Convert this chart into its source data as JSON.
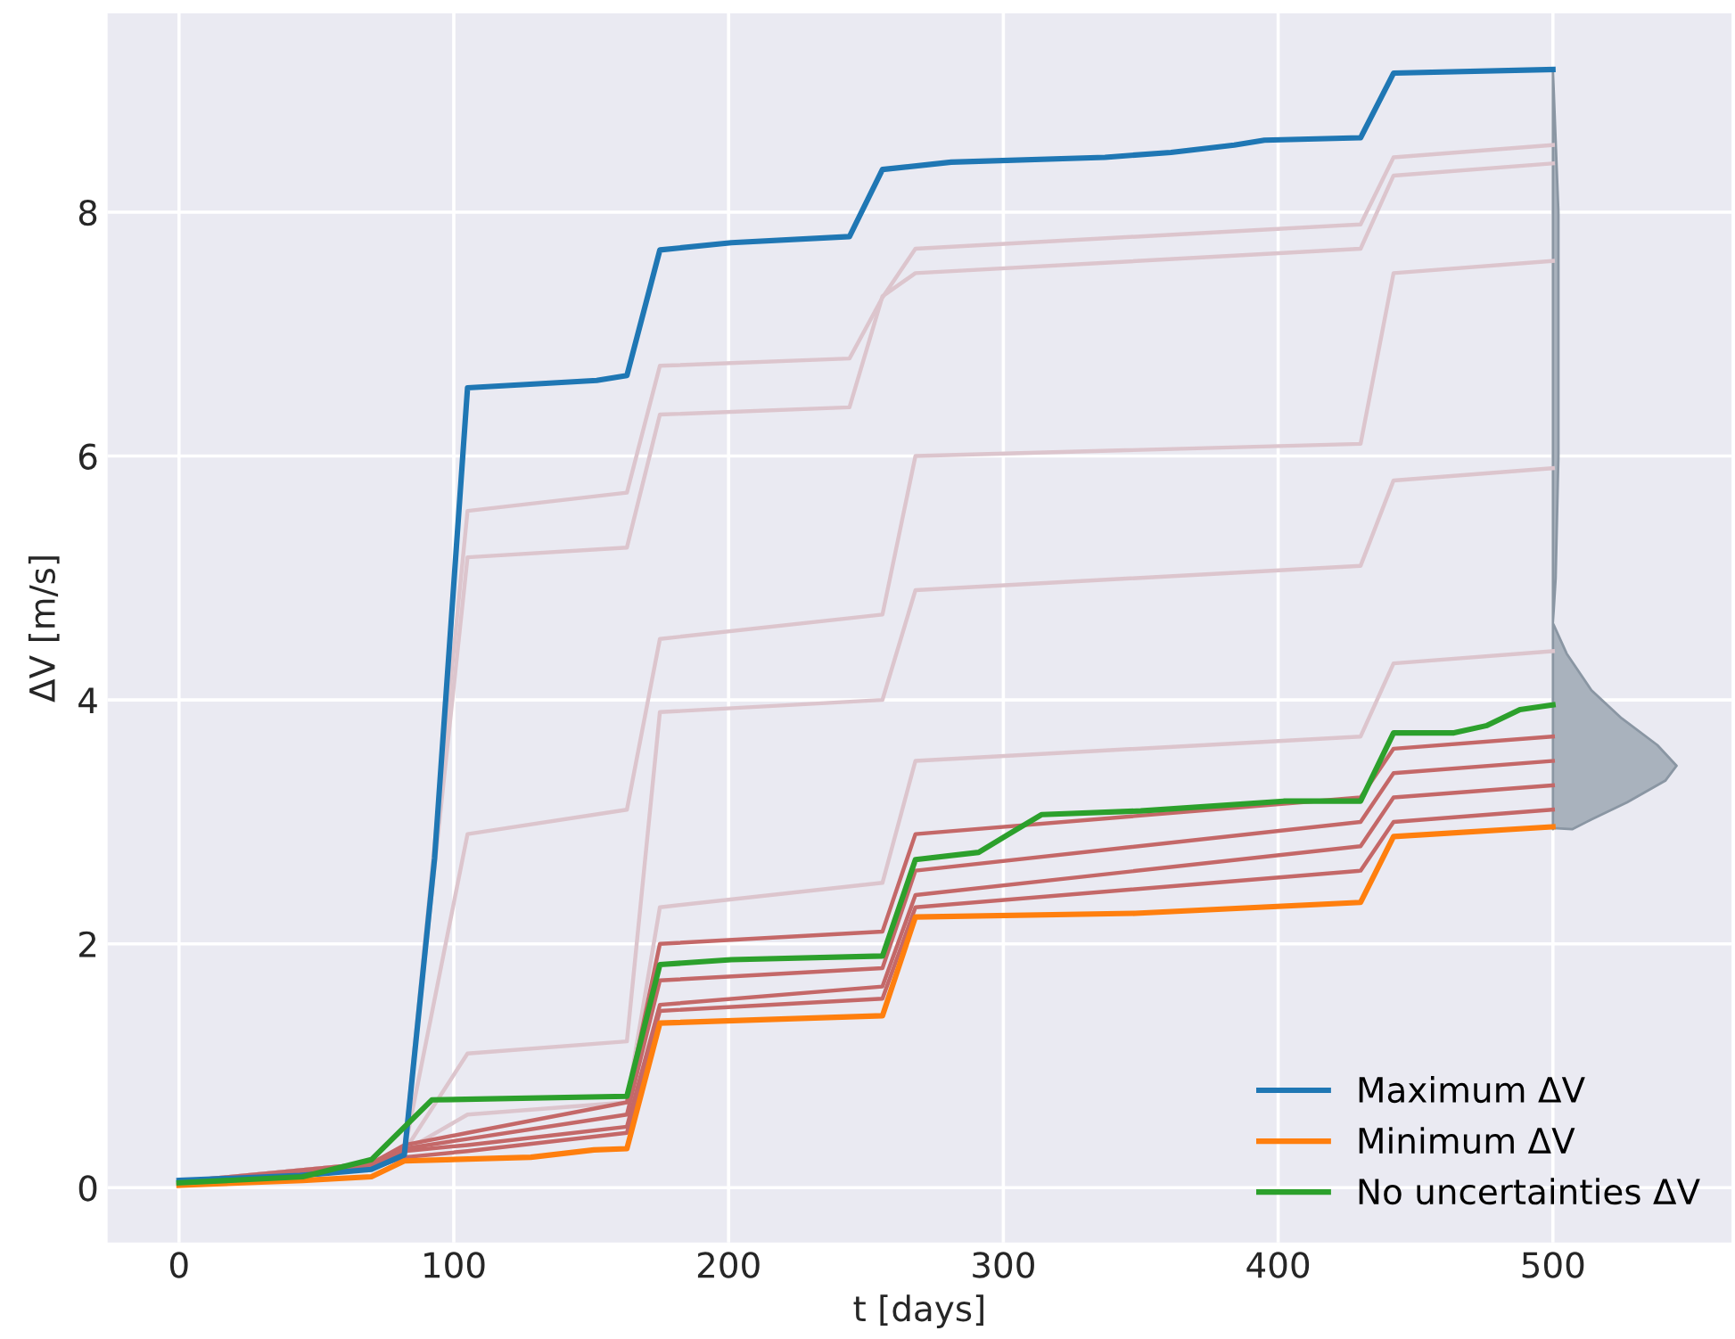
{
  "chart_data": {
    "type": "line",
    "xlabel": "t [days]",
    "ylabel": "ΔV [m/s]",
    "xlim": [
      -26,
      565
    ],
    "ylim": [
      -0.45,
      9.63
    ],
    "xticks": [
      0,
      100,
      200,
      300,
      400,
      500
    ],
    "yticks": [
      0,
      2,
      4,
      6,
      8
    ],
    "grid": true,
    "legend": "bottom right",
    "line_style": "solid",
    "marker": "none",
    "series": [
      {
        "color": "#dcc5cd",
        "x": [
          0,
          70,
          82,
          105,
          163,
          175,
          244,
          256,
          268,
          430,
          442,
          500
        ],
        "values": [
          0.05,
          0.2,
          0.3,
          5.55,
          5.7,
          6.74,
          6.8,
          7.3,
          7.7,
          7.9,
          8.45,
          8.55
        ]
      },
      {
        "color": "#dcc5cd",
        "x": [
          0,
          70,
          82,
          105,
          163,
          175,
          244,
          256,
          268,
          430,
          442,
          500
        ],
        "values": [
          0.05,
          0.2,
          0.3,
          5.17,
          5.25,
          6.34,
          6.4,
          7.31,
          7.5,
          7.7,
          8.3,
          8.4
        ]
      },
      {
        "color": "#dcc5cd",
        "x": [
          0,
          70,
          82,
          105,
          163,
          175,
          256,
          268,
          430,
          442,
          500
        ],
        "values": [
          0.05,
          0.2,
          0.3,
          2.9,
          3.1,
          4.5,
          4.7,
          6.0,
          6.1,
          7.5,
          7.6
        ]
      },
      {
        "color": "#dcc5cd",
        "x": [
          0,
          70,
          82,
          105,
          163,
          175,
          256,
          268,
          430,
          442,
          500
        ],
        "values": [
          0.05,
          0.2,
          0.3,
          1.1,
          1.2,
          3.9,
          4.0,
          4.9,
          5.1,
          5.8,
          5.9
        ]
      },
      {
        "color": "#dcc5cd",
        "x": [
          0,
          70,
          82,
          105,
          163,
          175,
          256,
          268,
          430,
          442,
          500
        ],
        "values": [
          0.05,
          0.2,
          0.3,
          0.6,
          0.7,
          2.3,
          2.5,
          3.5,
          3.7,
          4.3,
          4.4
        ]
      },
      {
        "color": "#c46868",
        "x": [
          0,
          70,
          82,
          105,
          163,
          175,
          256,
          268,
          430,
          442,
          500
        ],
        "values": [
          0.03,
          0.15,
          0.3,
          0.35,
          0.5,
          1.5,
          1.65,
          2.4,
          2.8,
          3.2,
          3.3
        ]
      },
      {
        "color": "#c46868",
        "x": [
          0,
          70,
          82,
          105,
          163,
          175,
          256,
          268,
          430,
          442,
          500
        ],
        "values": [
          0.05,
          0.18,
          0.32,
          0.4,
          0.6,
          1.7,
          1.8,
          2.6,
          3.0,
          3.4,
          3.5
        ]
      },
      {
        "color": "#c46868",
        "x": [
          0,
          70,
          82,
          105,
          163,
          175,
          256,
          268,
          430,
          442,
          500
        ],
        "values": [
          0.04,
          0.16,
          0.25,
          0.3,
          0.45,
          1.45,
          1.55,
          2.3,
          2.6,
          3.0,
          3.1
        ]
      },
      {
        "color": "#c46868",
        "x": [
          0,
          70,
          82,
          105,
          163,
          175,
          256,
          268,
          430,
          442,
          500
        ],
        "values": [
          0.05,
          0.2,
          0.35,
          0.45,
          0.7,
          2.0,
          2.1,
          2.9,
          3.2,
          3.6,
          3.7
        ]
      },
      {
        "type": "area",
        "color": "#a9b2bd",
        "x": [
          500,
          502,
          502,
          501,
          500,
          505,
          514,
          525,
          538,
          545,
          541,
          527,
          514,
          507,
          500
        ],
        "values": [
          9.17,
          8.0,
          6.0,
          5.0,
          4.63,
          4.38,
          4.08,
          3.85,
          3.63,
          3.46,
          3.34,
          3.16,
          3.02,
          2.94,
          2.95
        ]
      },
      {
        "name": "Maximum ΔV",
        "color": "#1f77b4",
        "x": [
          0,
          44,
          70,
          82,
          93,
          105,
          152,
          163,
          175,
          201,
          244,
          256,
          281,
          337,
          361,
          384,
          395,
          430,
          442,
          500
        ],
        "values": [
          0.06,
          0.1,
          0.15,
          0.27,
          2.7,
          6.56,
          6.62,
          6.66,
          7.69,
          7.75,
          7.8,
          8.35,
          8.41,
          8.45,
          8.49,
          8.55,
          8.59,
          8.61,
          9.14,
          9.17
        ]
      },
      {
        "name": "Minimum ΔV",
        "color": "#ff7f0e",
        "x": [
          0,
          45,
          70,
          82,
          128,
          151,
          163,
          175,
          256,
          268,
          348,
          430,
          442,
          500
        ],
        "values": [
          0.02,
          0.06,
          0.09,
          0.22,
          0.25,
          0.31,
          0.32,
          1.35,
          1.41,
          2.22,
          2.25,
          2.34,
          2.88,
          2.96
        ]
      },
      {
        "name": "No uncertainties ΔV",
        "color": "#2ca02c",
        "x": [
          0,
          45,
          70,
          92,
          163,
          175,
          201,
          256,
          268,
          291,
          302,
          314,
          350,
          402,
          430,
          442,
          464,
          476,
          488,
          500
        ],
        "values": [
          0.04,
          0.09,
          0.23,
          0.72,
          0.75,
          1.83,
          1.87,
          1.9,
          2.69,
          2.75,
          2.9,
          3.06,
          3.09,
          3.17,
          3.17,
          3.73,
          3.73,
          3.79,
          3.92,
          3.96
        ]
      }
    ]
  }
}
